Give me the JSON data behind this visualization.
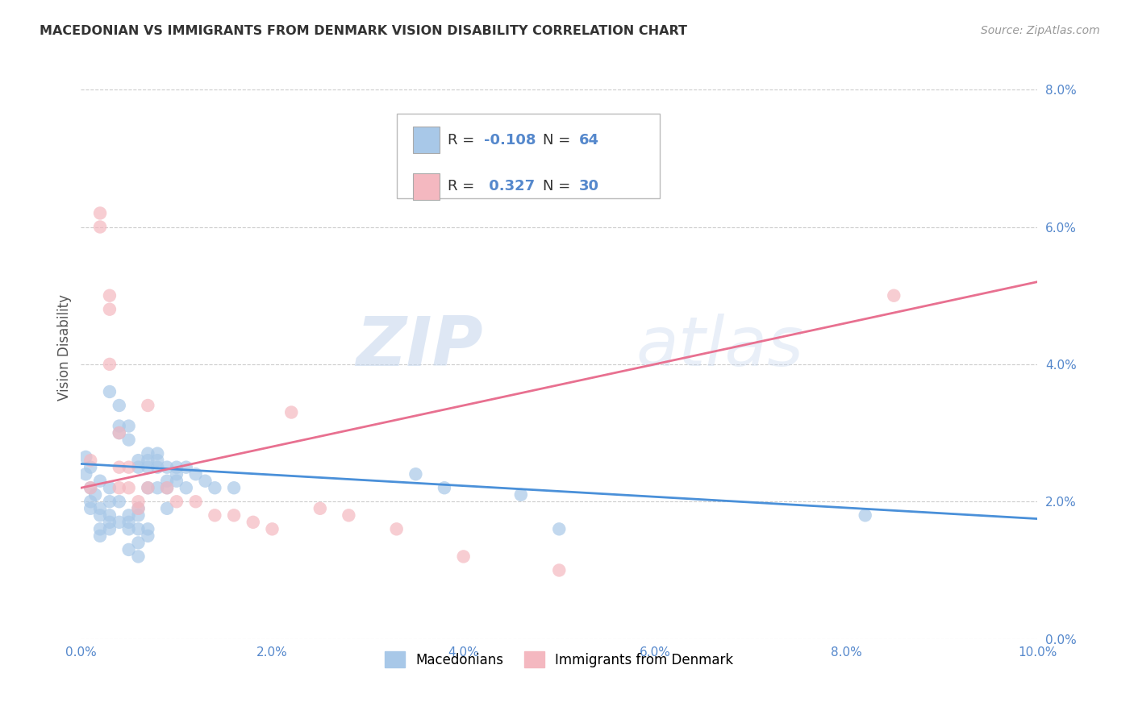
{
  "title": "MACEDONIAN VS IMMIGRANTS FROM DENMARK VISION DISABILITY CORRELATION CHART",
  "source": "Source: ZipAtlas.com",
  "ylabel": "Vision Disability",
  "xlim": [
    0.0,
    0.1
  ],
  "ylim": [
    0.0,
    0.085
  ],
  "yticks": [
    0.0,
    0.02,
    0.04,
    0.06,
    0.08
  ],
  "xticks": [
    0.0,
    0.02,
    0.04,
    0.06,
    0.08,
    0.1
  ],
  "macedonian_R": -0.108,
  "macedonian_N": 64,
  "denmark_R": 0.327,
  "denmark_N": 30,
  "macedonian_color": "#a8c8e8",
  "denmark_color": "#f4b8c0",
  "macedonian_line_color": "#4a90d9",
  "denmark_line_color": "#e87090",
  "macedonian_line": [
    [
      0.0,
      0.0255
    ],
    [
      0.1,
      0.0175
    ]
  ],
  "denmark_line": [
    [
      0.0,
      0.022
    ],
    [
      0.1,
      0.052
    ]
  ],
  "macedonian_points": [
    [
      0.0005,
      0.0265
    ],
    [
      0.0005,
      0.024
    ],
    [
      0.001,
      0.025
    ],
    [
      0.001,
      0.022
    ],
    [
      0.001,
      0.02
    ],
    [
      0.001,
      0.019
    ],
    [
      0.0015,
      0.021
    ],
    [
      0.002,
      0.023
    ],
    [
      0.002,
      0.019
    ],
    [
      0.002,
      0.018
    ],
    [
      0.002,
      0.016
    ],
    [
      0.002,
      0.015
    ],
    [
      0.003,
      0.022
    ],
    [
      0.003,
      0.02
    ],
    [
      0.003,
      0.018
    ],
    [
      0.003,
      0.017
    ],
    [
      0.003,
      0.016
    ],
    [
      0.003,
      0.036
    ],
    [
      0.004,
      0.034
    ],
    [
      0.004,
      0.031
    ],
    [
      0.004,
      0.03
    ],
    [
      0.004,
      0.02
    ],
    [
      0.004,
      0.017
    ],
    [
      0.005,
      0.031
    ],
    [
      0.005,
      0.029
    ],
    [
      0.005,
      0.018
    ],
    [
      0.005,
      0.017
    ],
    [
      0.005,
      0.016
    ],
    [
      0.005,
      0.013
    ],
    [
      0.006,
      0.026
    ],
    [
      0.006,
      0.025
    ],
    [
      0.006,
      0.019
    ],
    [
      0.006,
      0.018
    ],
    [
      0.006,
      0.016
    ],
    [
      0.006,
      0.014
    ],
    [
      0.006,
      0.012
    ],
    [
      0.007,
      0.027
    ],
    [
      0.007,
      0.026
    ],
    [
      0.007,
      0.025
    ],
    [
      0.007,
      0.022
    ],
    [
      0.007,
      0.016
    ],
    [
      0.007,
      0.015
    ],
    [
      0.008,
      0.027
    ],
    [
      0.008,
      0.026
    ],
    [
      0.008,
      0.025
    ],
    [
      0.008,
      0.022
    ],
    [
      0.009,
      0.025
    ],
    [
      0.009,
      0.023
    ],
    [
      0.009,
      0.022
    ],
    [
      0.009,
      0.019
    ],
    [
      0.01,
      0.025
    ],
    [
      0.01,
      0.024
    ],
    [
      0.01,
      0.023
    ],
    [
      0.011,
      0.025
    ],
    [
      0.011,
      0.022
    ],
    [
      0.012,
      0.024
    ],
    [
      0.013,
      0.023
    ],
    [
      0.014,
      0.022
    ],
    [
      0.016,
      0.022
    ],
    [
      0.035,
      0.024
    ],
    [
      0.038,
      0.022
    ],
    [
      0.046,
      0.021
    ],
    [
      0.05,
      0.016
    ],
    [
      0.082,
      0.018
    ]
  ],
  "denmark_points": [
    [
      0.001,
      0.026
    ],
    [
      0.001,
      0.022
    ],
    [
      0.002,
      0.062
    ],
    [
      0.002,
      0.06
    ],
    [
      0.003,
      0.05
    ],
    [
      0.003,
      0.048
    ],
    [
      0.003,
      0.04
    ],
    [
      0.004,
      0.03
    ],
    [
      0.004,
      0.025
    ],
    [
      0.004,
      0.022
    ],
    [
      0.005,
      0.025
    ],
    [
      0.005,
      0.022
    ],
    [
      0.006,
      0.02
    ],
    [
      0.006,
      0.019
    ],
    [
      0.007,
      0.034
    ],
    [
      0.007,
      0.022
    ],
    [
      0.009,
      0.022
    ],
    [
      0.01,
      0.02
    ],
    [
      0.012,
      0.02
    ],
    [
      0.014,
      0.018
    ],
    [
      0.016,
      0.018
    ],
    [
      0.018,
      0.017
    ],
    [
      0.02,
      0.016
    ],
    [
      0.022,
      0.033
    ],
    [
      0.025,
      0.019
    ],
    [
      0.028,
      0.018
    ],
    [
      0.033,
      0.016
    ],
    [
      0.04,
      0.012
    ],
    [
      0.05,
      0.01
    ],
    [
      0.085,
      0.05
    ]
  ],
  "background_color": "#ffffff",
  "grid_color": "#cccccc",
  "watermark_zip": "ZIP",
  "watermark_atlas": "atlas",
  "legend_macedonian_label": "Macedonians",
  "legend_denmark_label": "Immigrants from Denmark"
}
